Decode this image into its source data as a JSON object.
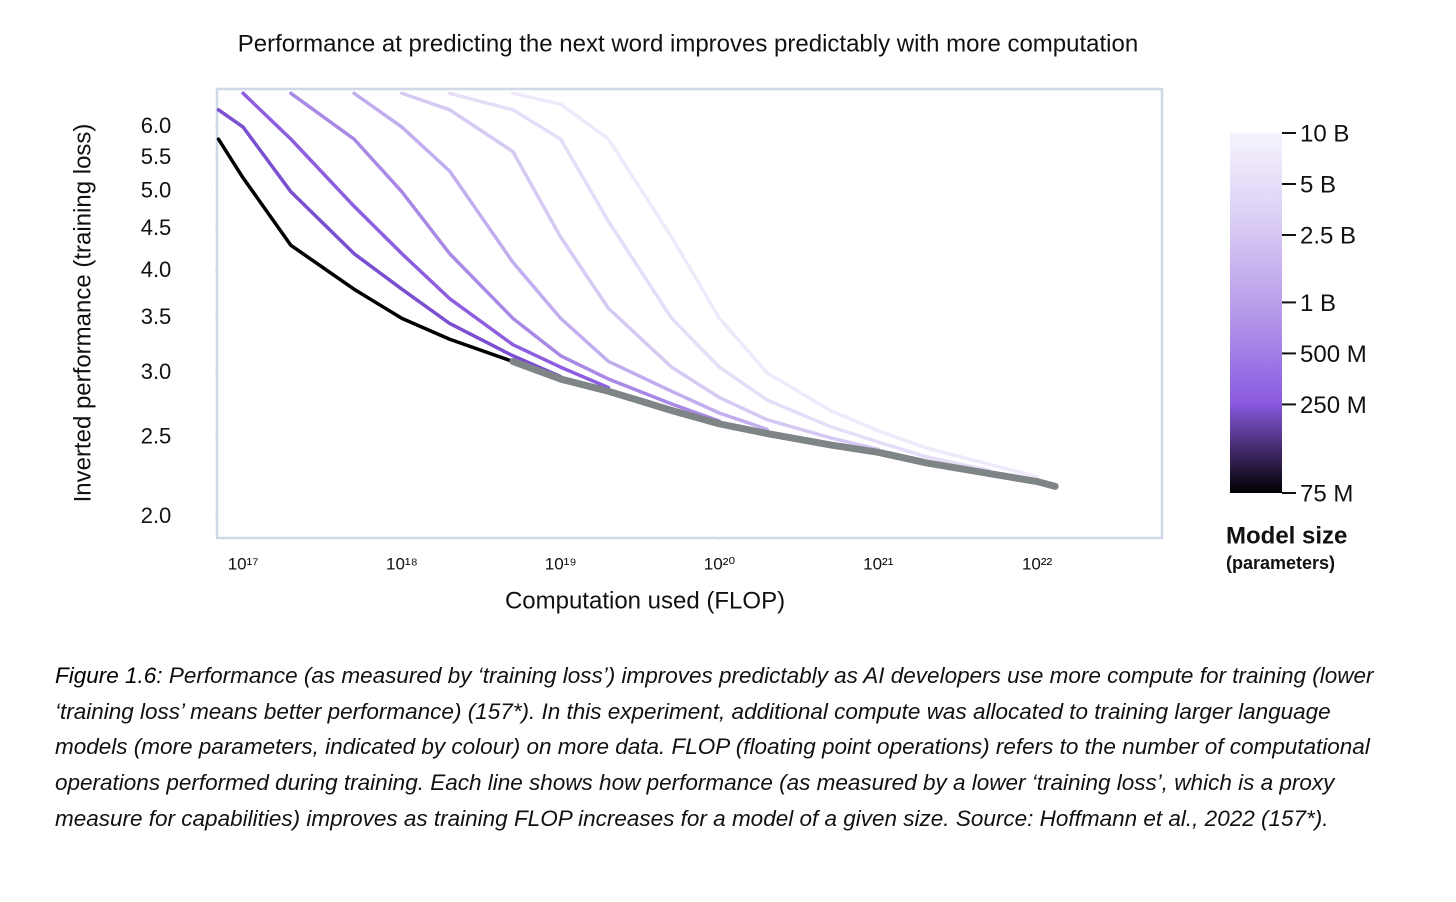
{
  "chart_data": {
    "type": "line",
    "title": "Performance at predicting the next word improves predictably with more computation",
    "x_label": "Computation used (FLOP)",
    "y_label": "Inverted performance (training loss)",
    "x_scale": "log",
    "y_scale": "log",
    "xlim": [
      6.85e+16,
      6.12e+22
    ],
    "ylim": [
      1.885,
      6.68
    ],
    "xticks": [
      {
        "value": 1e+17,
        "label": "10¹⁷"
      },
      {
        "value": 1e+18,
        "label": "10¹⁸"
      },
      {
        "value": 1e+19,
        "label": "10¹⁹"
      },
      {
        "value": 1e+20,
        "label": "10²⁰"
      },
      {
        "value": 1e+21,
        "label": "10²¹"
      },
      {
        "value": 1e+22,
        "label": "10²²"
      }
    ],
    "yticks": [
      {
        "value": 6,
        "label": "6.0"
      },
      5.5,
      {
        "value": 5,
        "label": "5.0"
      },
      4.5,
      {
        "value": 4,
        "label": "4.0"
      },
      3.5,
      {
        "value": 3,
        "label": "3.0"
      },
      2.5,
      {
        "value": 2,
        "label": "2.0"
      }
    ],
    "x": [
      7e+16,
      1e+17,
      2e+17,
      5e+17,
      1e+18,
      2e+18,
      5e+18,
      1e+19,
      2e+19,
      5e+19,
      1e+20,
      2e+20,
      5e+20,
      1e+21,
      2e+21,
      5e+21,
      1e+22,
      1.3e+22
    ],
    "series": [
      {
        "color": "#efe9fb",
        "values": [
          null,
          null,
          null,
          null,
          null,
          null,
          6.6,
          6.4,
          5.8,
          4.4,
          3.5,
          3.0,
          2.7,
          2.55,
          2.43,
          2.32,
          2.24,
          null
        ]
      },
      {
        "color": "#e6ddf8",
        "values": [
          null,
          null,
          null,
          null,
          null,
          6.6,
          6.3,
          5.8,
          4.6,
          3.5,
          3.05,
          2.78,
          2.58,
          2.47,
          2.37,
          2.28,
          null,
          null
        ]
      },
      {
        "color": "#d6c9f3",
        "values": [
          null,
          null,
          null,
          null,
          6.6,
          6.3,
          5.6,
          4.4,
          3.6,
          3.05,
          2.8,
          2.63,
          2.5,
          2.42,
          null,
          null,
          null,
          null
        ]
      },
      {
        "color": "#c2aeee",
        "values": [
          null,
          null,
          null,
          6.6,
          6.0,
          5.3,
          4.1,
          3.5,
          3.1,
          2.85,
          2.68,
          2.56,
          null,
          null,
          null,
          null,
          null,
          null
        ]
      },
      {
        "color": "#a889e6",
        "values": [
          null,
          null,
          6.6,
          5.8,
          5.0,
          4.2,
          3.5,
          3.15,
          2.95,
          2.75,
          2.62,
          null,
          null,
          null,
          null,
          null,
          null,
          null
        ]
      },
      {
        "color": "#8d5ee0",
        "values": [
          null,
          6.6,
          5.8,
          4.8,
          4.2,
          3.7,
          3.25,
          3.05,
          2.88,
          null,
          null,
          null,
          null,
          null,
          null,
          null,
          null,
          null
        ]
      },
      {
        "color": "#7a4fd0",
        "values": [
          6.3,
          6.0,
          5.0,
          4.2,
          3.8,
          3.45,
          3.15,
          2.97,
          null,
          null,
          null,
          null,
          null,
          null,
          null,
          null,
          null,
          null
        ]
      },
      {
        "color": "#000000",
        "values": [
          5.8,
          5.2,
          4.3,
          3.8,
          3.5,
          3.3,
          3.1,
          null,
          null,
          null,
          null,
          null,
          null,
          null,
          null,
          null,
          null,
          null
        ]
      },
      {
        "color": "#7f8487",
        "values": [
          null,
          null,
          null,
          null,
          null,
          null,
          3.1,
          2.95,
          2.85,
          2.7,
          2.6,
          2.53,
          2.45,
          2.4,
          2.33,
          2.26,
          2.21,
          2.18
        ]
      }
    ],
    "colorbar": {
      "title": "Model size",
      "subtitle": "(parameters)",
      "scale": "log",
      "lim": [
        75000000.0,
        10000000000.0
      ],
      "colors": [
        "#000000",
        "#8a5ae0",
        "#b59ae9",
        "#d9ccf4",
        "#f7f4fd"
      ],
      "ticks": [
        {
          "value": 10000000000.0,
          "label": "10 B"
        },
        {
          "value": 5000000000.0,
          "label": "5 B"
        },
        {
          "value": 2500000000.0,
          "label": "2.5 B"
        },
        {
          "value": 1000000000.0,
          "label": "1 B"
        },
        {
          "value": 500000000.0,
          "label": "500 M"
        },
        {
          "value": 250000000.0,
          "label": "250 M"
        },
        {
          "value": 75000000.0,
          "label": "75 M"
        }
      ]
    }
  },
  "caption": {
    "label": "Figure 1.6:",
    "text": "Performance (as measured by ‘training loss’) improves predictably as AI developers use more compute for training (lower ‘training loss’ means better performance) (157*). In this experiment, additional compute was allocated to training larger language models (more parameters, indicated by colour) on more data. FLOP (floating point operations) refers to the number of computational operations performed during training. Each line shows how performance (as measured by a lower ‘training loss’, which is a proxy measure for capabilities) improves as training FLOP increases for a model of a given size. Source: Hoffmann et al., 2022 (157*)."
  }
}
